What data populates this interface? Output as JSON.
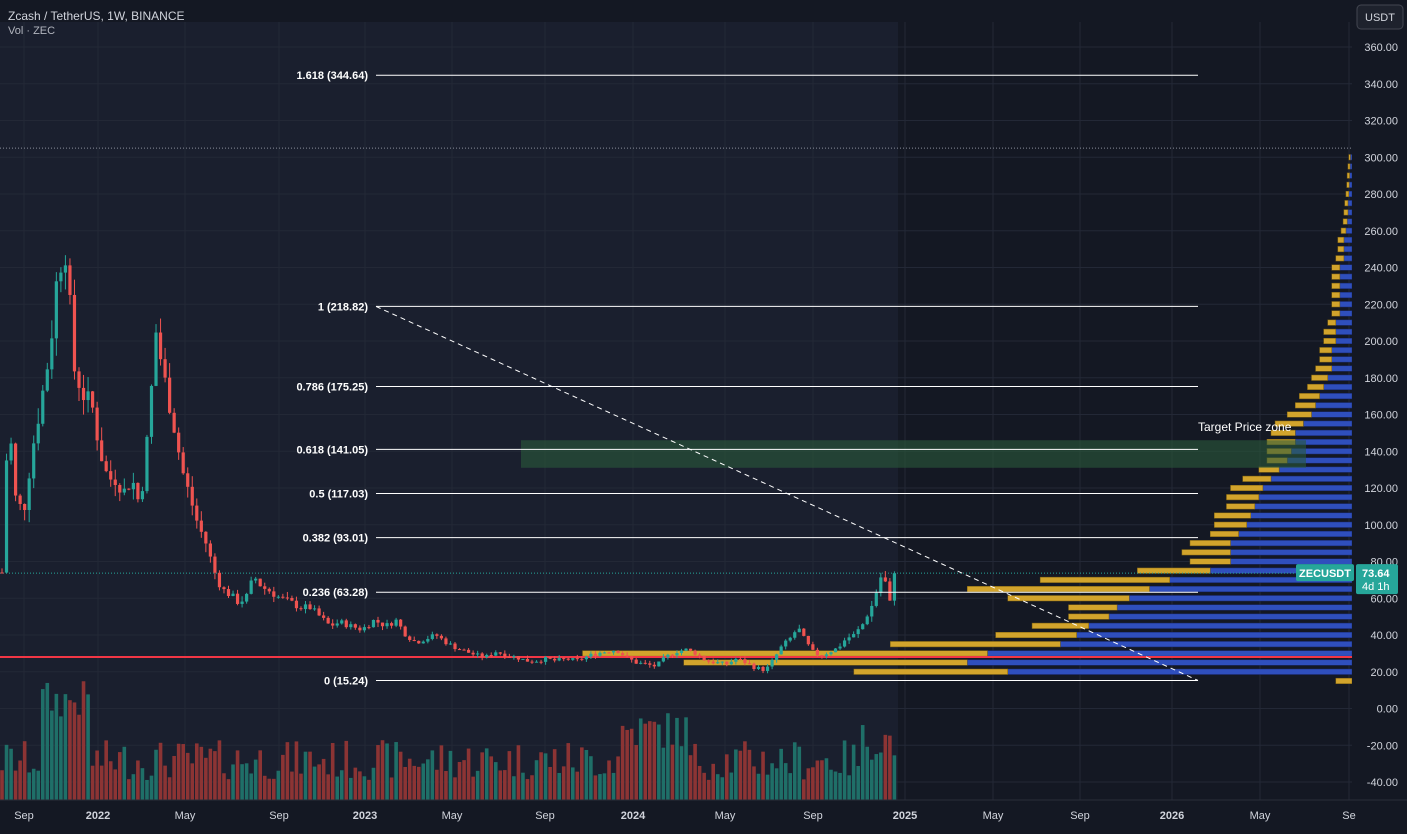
{
  "header": {
    "title": "Zcash / TetherUS, 1W, BINANCE",
    "volume_label": "Vol · ZEC"
  },
  "currency_button": "USDT",
  "colors": {
    "background": "#141823",
    "bull": "#26a69a",
    "bear": "#ef5350",
    "vp_up": "#2f4fbd",
    "vp_down": "#d2a42c",
    "support_line": "#f23645",
    "zone": "#2a5a3a"
  },
  "chart_data": {
    "type": "candlestick",
    "symbol": "ZECUSDT",
    "x_ticks": [
      "Sep",
      "2022",
      "May",
      "Sep",
      "2023",
      "May",
      "Sep",
      "2024",
      "May",
      "Sep",
      "2025",
      "May",
      "Sep",
      "2026",
      "May",
      "Se"
    ],
    "y_ticks": [
      "360.00",
      "340.00",
      "320.00",
      "300.00",
      "280.00",
      "260.00",
      "240.00",
      "220.00",
      "200.00",
      "180.00",
      "160.00",
      "140.00",
      "120.00",
      "100.00",
      "80.00",
      "60.00",
      "40.00",
      "20.00",
      "0.00",
      "-20.00",
      "-40.00"
    ],
    "y_range": [
      -45,
      372
    ],
    "fib_levels": [
      {
        "ratio": 1.618,
        "price": 344.64,
        "label": "1.618 (344.64)"
      },
      {
        "ratio": 1,
        "price": 218.82,
        "label": "1 (218.82)"
      },
      {
        "ratio": 0.786,
        "price": 175.25,
        "label": "0.786 (175.25)"
      },
      {
        "ratio": 0.618,
        "price": 141.05,
        "label": "0.618 (141.05)"
      },
      {
        "ratio": 0.5,
        "price": 117.03,
        "label": "0.5 (117.03)"
      },
      {
        "ratio": 0.382,
        "price": 93.01,
        "label": "0.382 (93.01)"
      },
      {
        "ratio": 0.236,
        "price": 63.28,
        "label": "0.236 (63.28)"
      },
      {
        "ratio": 0,
        "price": 15.24,
        "label": "0 (15.24)"
      }
    ],
    "target_zone": {
      "label": "Target Price zone",
      "low": 131,
      "high": 146
    },
    "support_level": 28,
    "previous_high_level": 305,
    "current": {
      "price": "73.64",
      "countdown": "4d 1h",
      "value": 73.64
    },
    "price_anchors": [
      {
        "x": 4,
        "p": 125
      },
      {
        "x": 10,
        "p": 150
      },
      {
        "x": 16,
        "p": 112
      },
      {
        "x": 24,
        "p": 108
      },
      {
        "x": 32,
        "p": 140
      },
      {
        "x": 42,
        "p": 170
      },
      {
        "x": 50,
        "p": 195
      },
      {
        "x": 58,
        "p": 240
      },
      {
        "x": 66,
        "p": 250
      },
      {
        "x": 74,
        "p": 185
      },
      {
        "x": 84,
        "p": 170
      },
      {
        "x": 92,
        "p": 165
      },
      {
        "x": 100,
        "p": 140
      },
      {
        "x": 108,
        "p": 125
      },
      {
        "x": 116,
        "p": 125
      },
      {
        "x": 124,
        "p": 118
      },
      {
        "x": 132,
        "p": 125
      },
      {
        "x": 140,
        "p": 110
      },
      {
        "x": 148,
        "p": 150
      },
      {
        "x": 156,
        "p": 205
      },
      {
        "x": 164,
        "p": 180
      },
      {
        "x": 172,
        "p": 160
      },
      {
        "x": 182,
        "p": 130
      },
      {
        "x": 190,
        "p": 115
      },
      {
        "x": 198,
        "p": 100
      },
      {
        "x": 206,
        "p": 90
      },
      {
        "x": 214,
        "p": 75
      },
      {
        "x": 222,
        "p": 65
      },
      {
        "x": 230,
        "p": 62
      },
      {
        "x": 238,
        "p": 58
      },
      {
        "x": 246,
        "p": 60
      },
      {
        "x": 254,
        "p": 72
      },
      {
        "x": 262,
        "p": 66
      },
      {
        "x": 270,
        "p": 64
      },
      {
        "x": 280,
        "p": 60
      },
      {
        "x": 290,
        "p": 58
      },
      {
        "x": 300,
        "p": 55
      },
      {
        "x": 310,
        "p": 55
      },
      {
        "x": 320,
        "p": 50
      },
      {
        "x": 330,
        "p": 45
      },
      {
        "x": 340,
        "p": 47
      },
      {
        "x": 350,
        "p": 45
      },
      {
        "x": 362,
        "p": 43
      },
      {
        "x": 374,
        "p": 48
      },
      {
        "x": 386,
        "p": 45
      },
      {
        "x": 396,
        "p": 48
      },
      {
        "x": 406,
        "p": 40
      },
      {
        "x": 416,
        "p": 36
      },
      {
        "x": 426,
        "p": 38
      },
      {
        "x": 436,
        "p": 40
      },
      {
        "x": 446,
        "p": 36
      },
      {
        "x": 456,
        "p": 33
      },
      {
        "x": 466,
        "p": 31
      },
      {
        "x": 476,
        "p": 29
      },
      {
        "x": 486,
        "p": 28
      },
      {
        "x": 496,
        "p": 31
      },
      {
        "x": 506,
        "p": 29
      },
      {
        "x": 516,
        "p": 28
      },
      {
        "x": 526,
        "p": 26
      },
      {
        "x": 536,
        "p": 26
      },
      {
        "x": 546,
        "p": 27
      },
      {
        "x": 556,
        "p": 26
      },
      {
        "x": 566,
        "p": 27
      },
      {
        "x": 576,
        "p": 26
      },
      {
        "x": 586,
        "p": 28
      },
      {
        "x": 596,
        "p": 30
      },
      {
        "x": 606,
        "p": 31
      },
      {
        "x": 616,
        "p": 32
      },
      {
        "x": 626,
        "p": 28
      },
      {
        "x": 636,
        "p": 25
      },
      {
        "x": 646,
        "p": 24
      },
      {
        "x": 656,
        "p": 23
      },
      {
        "x": 666,
        "p": 28
      },
      {
        "x": 676,
        "p": 31
      },
      {
        "x": 686,
        "p": 32
      },
      {
        "x": 696,
        "p": 30
      },
      {
        "x": 706,
        "p": 26
      },
      {
        "x": 716,
        "p": 25
      },
      {
        "x": 726,
        "p": 24
      },
      {
        "x": 736,
        "p": 27
      },
      {
        "x": 746,
        "p": 25
      },
      {
        "x": 756,
        "p": 22
      },
      {
        "x": 766,
        "p": 21
      },
      {
        "x": 774,
        "p": 27
      },
      {
        "x": 782,
        "p": 34
      },
      {
        "x": 790,
        "p": 38
      },
      {
        "x": 798,
        "p": 44
      },
      {
        "x": 806,
        "p": 36
      },
      {
        "x": 814,
        "p": 30
      },
      {
        "x": 822,
        "p": 29
      },
      {
        "x": 830,
        "p": 31
      },
      {
        "x": 838,
        "p": 33
      },
      {
        "x": 846,
        "p": 38
      },
      {
        "x": 854,
        "p": 40
      },
      {
        "x": 862,
        "p": 45
      },
      {
        "x": 868,
        "p": 52
      },
      {
        "x": 874,
        "p": 58
      },
      {
        "x": 880,
        "p": 72
      },
      {
        "x": 886,
        "p": 68
      },
      {
        "x": 890,
        "p": 57
      },
      {
        "x": 895,
        "p": 74
      }
    ],
    "volume_profile": [
      {
        "price": 15,
        "up": 0,
        "down": 0.04
      },
      {
        "price": 20,
        "up": 0.85,
        "down": 0.38
      },
      {
        "price": 25,
        "up": 0.95,
        "down": 0.7
      },
      {
        "price": 30,
        "up": 0.9,
        "down": 1.0
      },
      {
        "price": 35,
        "up": 0.72,
        "down": 0.42
      },
      {
        "price": 40,
        "up": 0.68,
        "down": 0.2
      },
      {
        "price": 45,
        "up": 0.65,
        "down": 0.14
      },
      {
        "price": 50,
        "up": 0.6,
        "down": 0.1
      },
      {
        "price": 55,
        "up": 0.58,
        "down": 0.12
      },
      {
        "price": 60,
        "up": 0.55,
        "down": 0.3
      },
      {
        "price": 65,
        "up": 0.5,
        "down": 0.45
      },
      {
        "price": 70,
        "up": 0.45,
        "down": 0.32
      },
      {
        "price": 75,
        "up": 0.35,
        "down": 0.18
      },
      {
        "price": 80,
        "up": 0.3,
        "down": 0.1
      },
      {
        "price": 85,
        "up": 0.3,
        "down": 0.12
      },
      {
        "price": 90,
        "up": 0.3,
        "down": 0.1
      },
      {
        "price": 95,
        "up": 0.28,
        "down": 0.07
      },
      {
        "price": 100,
        "up": 0.26,
        "down": 0.08
      },
      {
        "price": 105,
        "up": 0.25,
        "down": 0.09
      },
      {
        "price": 110,
        "up": 0.24,
        "down": 0.07
      },
      {
        "price": 115,
        "up": 0.23,
        "down": 0.08
      },
      {
        "price": 120,
        "up": 0.22,
        "down": 0.08
      },
      {
        "price": 125,
        "up": 0.2,
        "down": 0.07
      },
      {
        "price": 130,
        "up": 0.18,
        "down": 0.05
      },
      {
        "price": 135,
        "up": 0.16,
        "down": 0.05
      },
      {
        "price": 140,
        "up": 0.15,
        "down": 0.06
      },
      {
        "price": 145,
        "up": 0.14,
        "down": 0.07
      },
      {
        "price": 150,
        "up": 0.14,
        "down": 0.06
      },
      {
        "price": 155,
        "up": 0.12,
        "down": 0.07
      },
      {
        "price": 160,
        "up": 0.1,
        "down": 0.06
      },
      {
        "price": 165,
        "up": 0.09,
        "down": 0.05
      },
      {
        "price": 170,
        "up": 0.08,
        "down": 0.05
      },
      {
        "price": 175,
        "up": 0.07,
        "down": 0.04
      },
      {
        "price": 180,
        "up": 0.06,
        "down": 0.04
      },
      {
        "price": 185,
        "up": 0.05,
        "down": 0.04
      },
      {
        "price": 190,
        "up": 0.05,
        "down": 0.03
      },
      {
        "price": 195,
        "up": 0.05,
        "down": 0.03
      },
      {
        "price": 200,
        "up": 0.04,
        "down": 0.03
      },
      {
        "price": 205,
        "up": 0.04,
        "down": 0.03
      },
      {
        "price": 210,
        "up": 0.04,
        "down": 0.02
      },
      {
        "price": 215,
        "up": 0.03,
        "down": 0.02
      },
      {
        "price": 220,
        "up": 0.03,
        "down": 0.02
      },
      {
        "price": 225,
        "up": 0.03,
        "down": 0.02
      },
      {
        "price": 230,
        "up": 0.03,
        "down": 0.02
      },
      {
        "price": 235,
        "up": 0.03,
        "down": 0.02
      },
      {
        "price": 240,
        "up": 0.03,
        "down": 0.02
      },
      {
        "price": 245,
        "up": 0.02,
        "down": 0.02
      },
      {
        "price": 250,
        "up": 0.02,
        "down": 0.015
      },
      {
        "price": 255,
        "up": 0.02,
        "down": 0.015
      },
      {
        "price": 260,
        "up": 0.015,
        "down": 0.012
      },
      {
        "price": 265,
        "up": 0.012,
        "down": 0.01
      },
      {
        "price": 270,
        "up": 0.01,
        "down": 0.01
      },
      {
        "price": 275,
        "up": 0.01,
        "down": 0.008
      },
      {
        "price": 280,
        "up": 0.008,
        "down": 0.007
      },
      {
        "price": 285,
        "up": 0.007,
        "down": 0.006
      },
      {
        "price": 290,
        "up": 0.006,
        "down": 0.006
      },
      {
        "price": 295,
        "up": 0.005,
        "down": 0.005
      },
      {
        "price": 300,
        "up": 0.004,
        "down": 0.004
      }
    ]
  }
}
